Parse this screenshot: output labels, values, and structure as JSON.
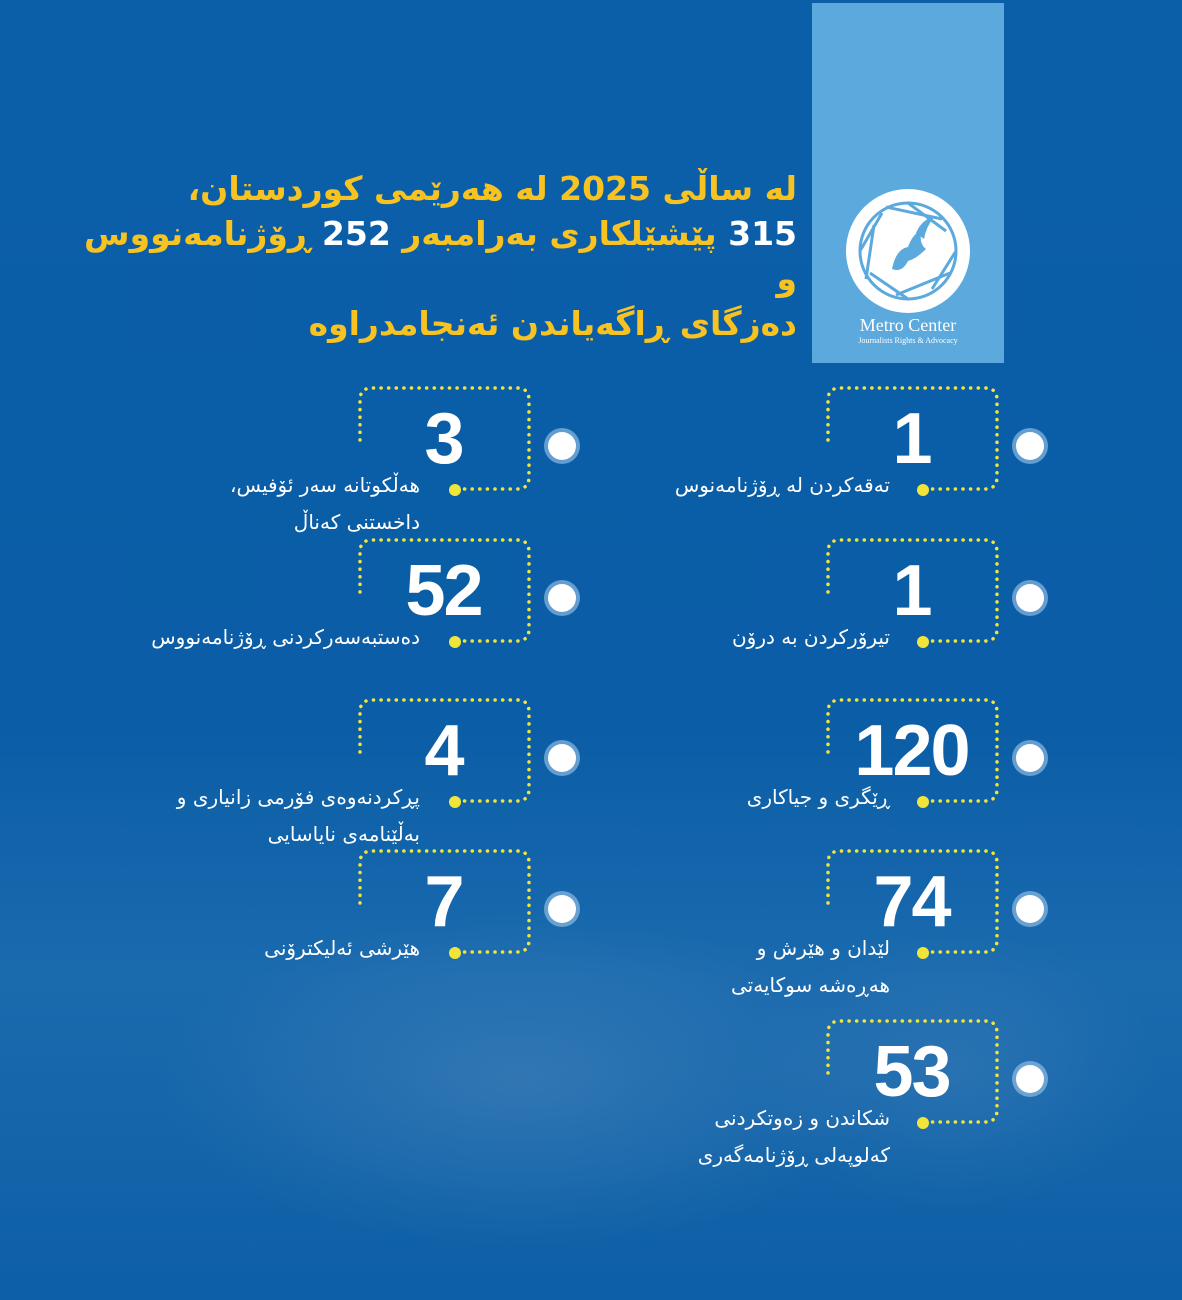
{
  "header": {
    "line1": "لە ساڵی 2025 لە هەرێمی کوردستان،",
    "line2_num1": "315",
    "line2_mid": "پێشێلکاری بەرامبەر",
    "line2_num2": "252",
    "line2_end": "ڕۆژنامەنووس و",
    "line3": "دەزگای ڕاگەیاندن ئەنجامدراوە"
  },
  "logo": {
    "name": "Metro Center",
    "subtitle": "Journalists Rights & Advocacy",
    "icon": "dove-camera-aperture-icon"
  },
  "colors": {
    "background": "#0b5fa8",
    "accent": "#f8c320",
    "panel": "#5ba9dd",
    "dots": "#f2e53a"
  },
  "stats": {
    "right": [
      {
        "value": "1",
        "label": "تەقەکردن لە ڕۆژنامەنوس"
      },
      {
        "value": "1",
        "label": "تیرۆرکردن بە درۆن"
      },
      {
        "value": "120",
        "label": "ڕێگری و جیاکاری"
      },
      {
        "value": "74",
        "label": "لێدان و هێرش و\nهەڕەشە سوکایەتی"
      },
      {
        "value": "53",
        "label": "شکاندن و زەوتکردنی\nکەلوپەلی ڕۆژنامەگەری"
      }
    ],
    "left": [
      {
        "value": "3",
        "label": "هەڵکوتانە سەر ئۆفیس،\nداخستنی کەناڵ"
      },
      {
        "value": "52",
        "label": "دەستبەسەرکردنی ڕۆژنامەنووس"
      },
      {
        "value": "4",
        "label": "پڕکردنەوەی فۆرمی زانیاری و\nبەڵێنامەی نایاسایی"
      },
      {
        "value": "7",
        "label": "هێرشی ئەلیکترۆنی"
      }
    ]
  }
}
